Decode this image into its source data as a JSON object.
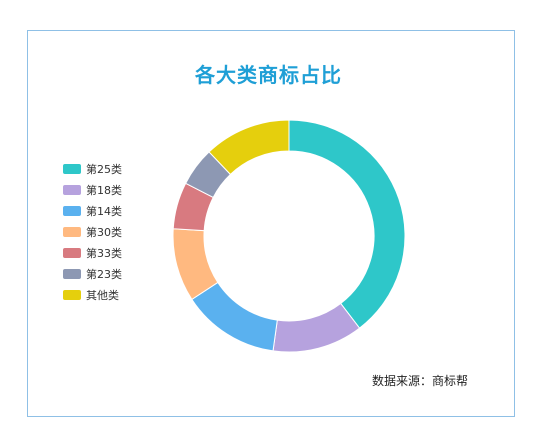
{
  "chart_data": {
    "type": "pie",
    "variant": "donut",
    "title": "各大类商标占比",
    "categories": [
      "第25类",
      "第18类",
      "第14类",
      "第30类",
      "第33类",
      "第23类",
      "其他类"
    ],
    "values": [
      39.6,
      12.6,
      13.6,
      10.2,
      6.5,
      5.4,
      12.1
    ],
    "colors": [
      "#2ec7c9",
      "#b6a2de",
      "#5ab1ef",
      "#ffb980",
      "#d87a80",
      "#8d98b3",
      "#e5cf0d"
    ],
    "legend_position": "left",
    "start_angle": "top",
    "direction": "clockwise"
  },
  "source_text": "数据来源：商标帮"
}
